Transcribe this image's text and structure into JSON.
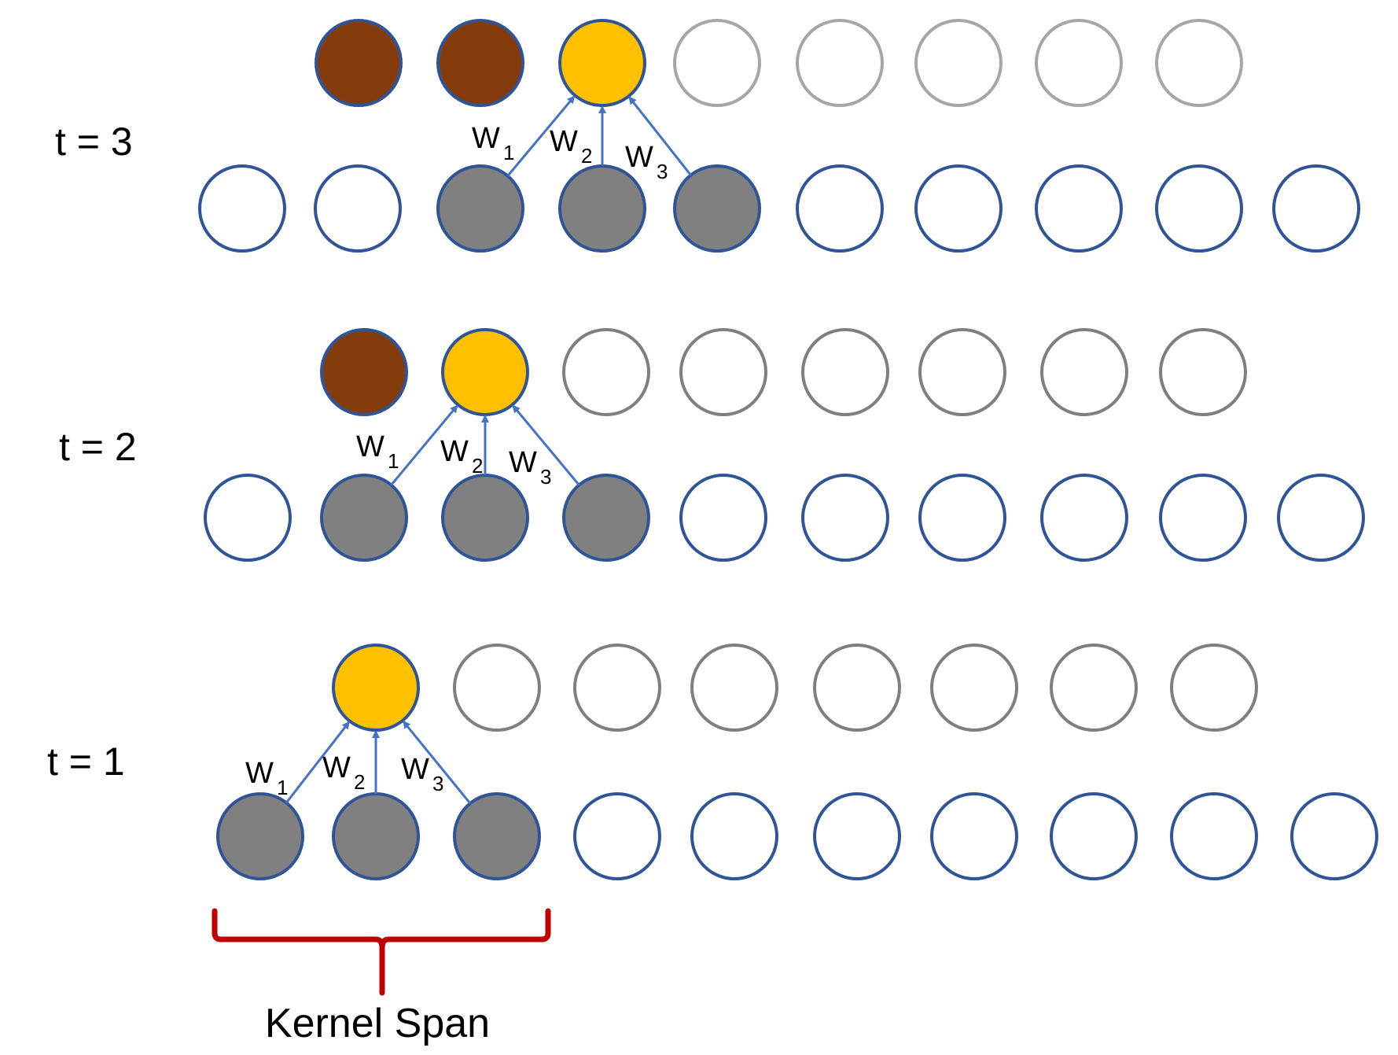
{
  "colors": {
    "output_computed": "#843C0C",
    "output_current": "#FFC000",
    "input_in_kernel": "#808080",
    "node_outline_blue": "#2F5597",
    "pending_outline": "#7F7F7F",
    "pending_outline_light": "#A6A6A6",
    "arrow": "#4472C4",
    "brace": "#C00000"
  },
  "icons": {
    "arrow_head": "arrow-head-icon",
    "brace": "curly-brace-icon"
  },
  "steps": [
    {
      "label": "t = 3",
      "output_states": [
        "computed",
        "computed",
        "current",
        "pending",
        "pending",
        "pending",
        "pending",
        "pending"
      ],
      "input_states": [
        "idle",
        "idle",
        "kernel",
        "kernel",
        "kernel",
        "idle",
        "idle",
        "idle",
        "idle",
        "idle"
      ],
      "weights": [
        "W1",
        "W2",
        "W3"
      ]
    },
    {
      "label": "t = 2",
      "output_states": [
        "computed",
        "current",
        "pending",
        "pending",
        "pending",
        "pending",
        "pending",
        "pending"
      ],
      "input_states": [
        "idle",
        "kernel",
        "kernel",
        "kernel",
        "idle",
        "idle",
        "idle",
        "idle",
        "idle",
        "idle"
      ],
      "weights": [
        "W1",
        "W2",
        "W3"
      ]
    },
    {
      "label": "t = 1",
      "output_states": [
        "current",
        "pending",
        "pending",
        "pending",
        "pending",
        "pending",
        "pending",
        "pending"
      ],
      "input_states": [
        "kernel",
        "kernel",
        "kernel",
        "idle",
        "idle",
        "idle",
        "idle",
        "idle",
        "idle",
        "idle"
      ],
      "weights": [
        "W1",
        "W2",
        "W3"
      ]
    }
  ],
  "weight_labels": [
    {
      "base": "W",
      "sub": "1"
    },
    {
      "base": "W",
      "sub": "2"
    },
    {
      "base": "W",
      "sub": "3"
    }
  ],
  "kernel_span_label": "Kernel Span"
}
